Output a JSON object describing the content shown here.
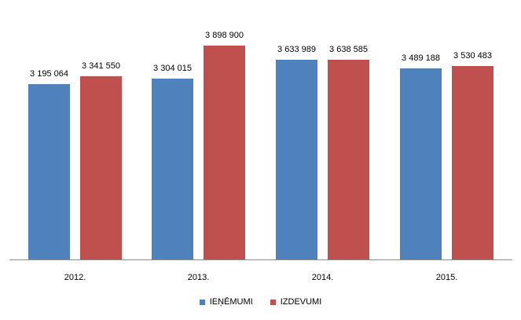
{
  "chart_data": {
    "type": "bar",
    "title": "",
    "xlabel": "",
    "ylabel": "",
    "categories": [
      "2012.",
      "2013.",
      "2014.",
      "2015."
    ],
    "series": [
      {
        "name": "IEŅĒMUMI",
        "color": "#4f81bd",
        "values": [
          3195064,
          3304015,
          3633989,
          3489188
        ],
        "labels": [
          "3 195 064",
          "3 304 015",
          "3 633 989",
          "3 489 188"
        ]
      },
      {
        "name": "IZDEVUMI",
        "color": "#c0504d",
        "values": [
          3341550,
          3898900,
          3638585,
          3530483
        ],
        "labels": [
          "3 341 550",
          "3 898 900",
          "3 638 585",
          "3 530 483"
        ]
      }
    ],
    "ylim": [
      0,
      4000000
    ],
    "grid": false,
    "legend_position": "bottom",
    "data_labels": true
  }
}
